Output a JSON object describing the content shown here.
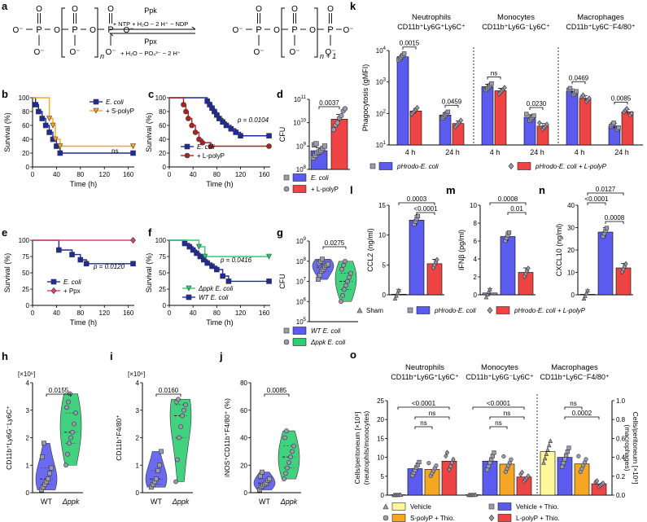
{
  "colors": {
    "blue": "#5b5bf0",
    "red": "#ef4444",
    "green": "#2ecc71",
    "orange": "#f5a623",
    "yellow": "#fff79a",
    "gray": "#8a8aa8",
    "navy": "#1f2a9c",
    "magenta": "#e0407a",
    "darkred": "#b22020",
    "ink": "#000000"
  },
  "panel_a": {
    "label": "a",
    "left_n": "n",
    "right_n": "n + 1",
    "top_enzyme": "Ppk",
    "top_reaction": "+ NTP + H₂O − 2 H⁺ − NDP",
    "bottom_enzyme": "Ppx",
    "bottom_reaction": "+ H₂O − PO₄³⁻ − 2 H⁺"
  },
  "chart_data": [
    {
      "id": "b",
      "type": "line",
      "title": "",
      "xlabel": "Time (h)",
      "ylabel": "Survival (%)",
      "xlim": [
        0,
        170
      ],
      "ylim": [
        0,
        100
      ],
      "xticks": [
        0,
        40,
        80,
        120,
        160
      ],
      "yticks": [
        0,
        20,
        40,
        60,
        80,
        100
      ],
      "series": [
        {
          "name": "E. coli",
          "color": "navy",
          "marker": "square",
          "x": [
            0,
            5,
            10,
            16,
            22,
            28,
            34,
            40,
            46,
            168
          ],
          "y": [
            100,
            90,
            80,
            70,
            60,
            50,
            40,
            30,
            20,
            20
          ]
        },
        {
          "name": "+ S-polyP",
          "color": "orange",
          "marker": "triangle",
          "x": [
            0,
            24,
            28,
            34,
            38,
            46,
            168
          ],
          "y": [
            100,
            100,
            70,
            60,
            40,
            30,
            30
          ]
        }
      ],
      "annotation": "ns",
      "legend": [
        "E. coli",
        "+ S-polyP"
      ]
    },
    {
      "id": "c",
      "type": "line",
      "xlabel": "Time (h)",
      "ylabel": "Survival (%)",
      "xlim": [
        0,
        170
      ],
      "ylim": [
        0,
        100
      ],
      "xticks": [
        0,
        40,
        80,
        120,
        160
      ],
      "yticks": [
        0,
        20,
        40,
        60,
        80,
        100
      ],
      "series": [
        {
          "name": "E. coli",
          "color": "navy",
          "marker": "square",
          "x": [
            0,
            60,
            64,
            68,
            72,
            76,
            80,
            84,
            90,
            96,
            104,
            112,
            120,
            168
          ],
          "y": [
            100,
            100,
            95,
            90,
            85,
            80,
            75,
            70,
            65,
            60,
            55,
            50,
            45,
            45
          ]
        },
        {
          "name": "+ L-polyP",
          "color": "darkred",
          "marker": "circle",
          "x": [
            0,
            24,
            28,
            32,
            38,
            44,
            50,
            56,
            70,
            168
          ],
          "y": [
            100,
            90,
            80,
            70,
            60,
            50,
            40,
            35,
            30,
            30
          ]
        }
      ],
      "annotation": "p = 0.0104",
      "legend": [
        "E. coli",
        "+ L-polyP"
      ]
    },
    {
      "id": "d",
      "type": "scatter",
      "ylabel": "CFU",
      "yscale": "log",
      "ylim": [
        8,
        11
      ],
      "yticks": [
        "10^8",
        "10^9",
        "10^10",
        "10^11"
      ],
      "groups": [
        {
          "name": "E. coli",
          "color": "blue",
          "marker": "square",
          "mean": 8.8,
          "sem": 0.12,
          "values": [
            8.5,
            8.6,
            8.7,
            8.75,
            8.8,
            8.9,
            9.0,
            9.05,
            9.1
          ]
        },
        {
          "name": "+ L-polyP",
          "color": "red",
          "marker": "circle",
          "mean": 10.15,
          "sem": 0.2,
          "values": [
            9.7,
            9.9,
            10.0,
            10.2,
            10.3,
            10.5,
            10.6
          ]
        }
      ],
      "comparisons": [
        {
          "text": "0.0037"
        }
      ],
      "legend": [
        "E. coli",
        "+ L-polyP"
      ]
    },
    {
      "id": "e",
      "type": "line",
      "xlabel": "Time (h)",
      "ylabel": "Survival (%)",
      "xlim": [
        0,
        170
      ],
      "ylim": [
        0,
        100
      ],
      "xticks": [
        0,
        40,
        80,
        120,
        160
      ],
      "yticks": [
        0,
        25,
        50,
        75,
        100
      ],
      "series": [
        {
          "name": "E. coli",
          "color": "navy",
          "marker": "square",
          "x": [
            0,
            40,
            44,
            60,
            66,
            74,
            80,
            90,
            168
          ],
          "y": [
            100,
            100,
            85,
            85,
            78,
            78,
            70,
            64,
            64
          ]
        },
        {
          "name": "+ Ppx",
          "color": "magenta",
          "marker": "diamond",
          "x": [
            0,
            168
          ],
          "y": [
            100,
            100
          ]
        }
      ],
      "annotation": "p = 0.0120",
      "legend": [
        "E. coli",
        "+ Ppx"
      ]
    },
    {
      "id": "f",
      "type": "line",
      "xlabel": "Time (h)",
      "ylabel": "Survival (%)",
      "xlim": [
        0,
        170
      ],
      "ylim": [
        0,
        100
      ],
      "xticks": [
        0,
        40,
        80,
        120,
        160
      ],
      "yticks": [
        0,
        25,
        50,
        75,
        100
      ],
      "series": [
        {
          "name": "WT E. coli",
          "color": "navy",
          "marker": "square",
          "x": [
            0,
            20,
            26,
            34,
            40,
            46,
            52,
            58,
            64,
            72,
            80,
            90,
            100,
            168
          ],
          "y": [
            100,
            100,
            95,
            90,
            85,
            80,
            75,
            70,
            65,
            60,
            55,
            45,
            37,
            37
          ]
        },
        {
          "name": "Δppk E. coli",
          "color": "green",
          "marker": "triangle",
          "x": [
            0,
            40,
            50,
            60,
            140,
            168
          ],
          "y": [
            100,
            100,
            90,
            75,
            75,
            75
          ]
        }
      ],
      "annotation": "p = 0.0416",
      "legend": [
        "Δppk E. coli",
        "WT E. coli"
      ]
    },
    {
      "id": "g",
      "type": "violin",
      "ylabel": "CFU",
      "yscale": "log",
      "ylim": [
        5,
        9
      ],
      "yticks": [
        "10^5",
        "10^6",
        "10^7",
        "10^8",
        "10^9"
      ],
      "groups": [
        {
          "name": "WT E. coli",
          "color": "blue",
          "marker": "square",
          "values": [
            7.1,
            7.3,
            7.5,
            7.6,
            7.7,
            7.8,
            7.85,
            7.9,
            8.0,
            8.1
          ]
        },
        {
          "name": "Δppk E. coli",
          "color": "green",
          "marker": "circle",
          "values": [
            6.0,
            6.3,
            6.6,
            6.8,
            7.0,
            7.2,
            7.4,
            7.6,
            7.8,
            8.0
          ]
        }
      ],
      "comparisons": [
        {
          "text": "0.0275"
        }
      ],
      "legend": [
        "WT E. coli",
        "Δppk E. coli"
      ]
    },
    {
      "id": "h",
      "type": "violin",
      "ylabel": "CD11b⁺Ly6G⁻Ly6C⁺",
      "multiplier": "[×10⁶]",
      "ylim": [
        0,
        4
      ],
      "yticks": [
        0,
        1,
        2,
        3,
        4
      ],
      "categories": [
        "WT",
        "Δppk"
      ],
      "groups": [
        {
          "name": "WT",
          "color": "blue",
          "marker": "square",
          "values": [
            0.1,
            0.2,
            0.3,
            0.4,
            0.5,
            0.7,
            0.9,
            1.3,
            1.8
          ]
        },
        {
          "name": "Δppk",
          "color": "green",
          "marker": "circle",
          "values": [
            1.0,
            1.4,
            1.8,
            2.0,
            2.2,
            2.5,
            2.9,
            3.1,
            3.3,
            3.6
          ]
        }
      ],
      "comparisons": [
        {
          "text": "0.0155"
        }
      ]
    },
    {
      "id": "i",
      "type": "violin",
      "ylabel": "CD11b⁺F4/80⁺",
      "multiplier": "[×10⁶]",
      "ylim": [
        0,
        4
      ],
      "yticks": [
        0,
        1,
        2,
        3,
        4
      ],
      "categories": [
        "WT",
        "Δppk"
      ],
      "groups": [
        {
          "name": "WT",
          "color": "blue",
          "marker": "square",
          "values": [
            0.2,
            0.3,
            0.4,
            0.5,
            0.8,
            1.0,
            1.5
          ]
        },
        {
          "name": "Δppk",
          "color": "green",
          "marker": "circle",
          "values": [
            0.4,
            1.2,
            2.0,
            2.4,
            2.8,
            3.0,
            3.2,
            3.3,
            3.4
          ]
        }
      ],
      "comparisons": [
        {
          "text": "0.0160"
        }
      ]
    },
    {
      "id": "j",
      "type": "violin",
      "ylabel": "iNOS⁺CD11b⁺F4/80⁺ (%)",
      "ylim": [
        0,
        80
      ],
      "yticks": [
        0,
        20,
        40,
        60,
        80
      ],
      "categories": [
        "WT",
        "Δppk"
      ],
      "groups": [
        {
          "name": "WT",
          "color": "blue",
          "marker": "square",
          "values": [
            2,
            4,
            5,
            6,
            7,
            9,
            10,
            12,
            15
          ]
        },
        {
          "name": "Δppk",
          "color": "green",
          "marker": "circle",
          "values": [
            10,
            14,
            18,
            22,
            26,
            30,
            34,
            40,
            45
          ]
        }
      ],
      "comparisons": [
        {
          "text": "0.0085"
        }
      ]
    },
    {
      "id": "k",
      "type": "bar",
      "ylabel": "Phagocytosis (gMFI)",
      "yscale": "log",
      "ylim": [
        1,
        4
      ],
      "yticks": [
        "10^1",
        "10^2",
        "10^3",
        "10^4"
      ],
      "sections": [
        "Neutrophils",
        "Monocytes",
        "Macrophages"
      ],
      "section_markers": [
        "CD11b⁺Ly6G⁺Ly6C⁺",
        "CD11b⁺Ly6G⁻Ly6C⁺",
        "CD11b⁺Ly6C⁻F4/80⁺"
      ],
      "categories": [
        "4 h",
        "24 h",
        "4 h",
        "24 h",
        "4 h",
        "24 h"
      ],
      "series": [
        {
          "name": "pHrodo-E. coli",
          "color": "blue",
          "marker": "square",
          "values": [
            3.8,
            1.95,
            2.85,
            1.88,
            2.7,
            1.6
          ]
        },
        {
          "name": "pHrodo-E. coli + L-polyP",
          "color": "red",
          "marker": "diamond",
          "values": [
            2.08,
            1.68,
            2.72,
            1.6,
            2.48,
            2.05
          ]
        }
      ],
      "comparisons": [
        "0.0015",
        "0.0459",
        "ns",
        "0.0230",
        "0.0469",
        "0.0085"
      ],
      "legend": [
        "pHrodo-E. coli",
        "pHrodo-E. coli + L-polyP"
      ]
    },
    {
      "id": "l",
      "type": "bar",
      "ylabel": "CCL2 (ng/ml)",
      "ylim": [
        0,
        15
      ],
      "yticks": [
        0,
        5,
        10,
        15
      ],
      "categories": [
        "Sham",
        "pHrodo-E. coli",
        "pHrodo-E. coli + L-polyP"
      ],
      "values": [
        0.1,
        12.5,
        5.2
      ],
      "colors": [
        "gray",
        "blue",
        "red"
      ],
      "comparisons": [
        "0.0003",
        "<0.0001"
      ]
    },
    {
      "id": "m",
      "type": "bar",
      "ylabel": "IFNβ (pg/ml)",
      "ylim": [
        0,
        10
      ],
      "yticks": [
        0,
        2,
        4,
        6,
        8,
        10
      ],
      "categories": [
        "Sham",
        "pHrodo-E. coli",
        "pHrodo-E. coli + L-polyP"
      ],
      "values": [
        0.2,
        6.5,
        2.5
      ],
      "colors": [
        "gray",
        "blue",
        "red"
      ],
      "comparisons": [
        "0.0008",
        "0.01"
      ]
    },
    {
      "id": "n",
      "type": "bar",
      "ylabel": "CXCL10 (ng/ml)",
      "ylim": [
        0,
        40
      ],
      "yticks": [
        0,
        10,
        20,
        30,
        40
      ],
      "categories": [
        "Sham",
        "pHrodo-E. coli",
        "pHrodo-E. coli + L-polyP"
      ],
      "values": [
        0.2,
        28,
        12
      ],
      "colors": [
        "gray",
        "blue",
        "red"
      ],
      "comparisons": [
        "<0.0001",
        "0.0127",
        "0.0008"
      ]
    },
    {
      "id": "o",
      "type": "bar",
      "ylabel": "Cells/peritoneum [×10⁶] (neutrophils/monocytes)",
      "y2label": "Cells/peritoneum [×10⁶] (macrophages)",
      "ylim": [
        0,
        25
      ],
      "yticks": [
        0,
        5,
        10,
        15,
        20,
        25
      ],
      "y2lim": [
        0,
        1.0
      ],
      "y2ticks": [
        0,
        0.2,
        0.4,
        0.6,
        0.8,
        1.0
      ],
      "sections": [
        "Neutrophils",
        "Monocytes",
        "Macrophages"
      ],
      "section_markers": [
        "CD11b⁺Ly6G⁺Ly6C⁺",
        "CD11b⁺Ly6G⁻Ly6C⁺",
        "CD11b⁺Ly6C⁻F4/80⁺"
      ],
      "series": [
        {
          "name": "Vehicle",
          "color": "yellow",
          "values": [
            0.1,
            0.1,
            0.46
          ]
        },
        {
          "name": "Vehicle + Thio.",
          "color": "blue",
          "values": [
            7.0,
            9.0,
            0.4
          ]
        },
        {
          "name": "S-polyP + Thio.",
          "color": "orange",
          "values": [
            6.8,
            8.2,
            0.33
          ]
        },
        {
          "name": "L-polyP + Thio.",
          "color": "red",
          "values": [
            9.0,
            4.8,
            0.12
          ]
        }
      ],
      "comparisons": [
        "<0.0001",
        "ns",
        "ns",
        "<0.0001",
        "ns",
        "ns",
        "ns",
        "0.0002"
      ],
      "legend": [
        "Vehicle",
        "Vehicle + Thio.",
        "S-polyP + Thio.",
        "L-polyP + Thio."
      ]
    }
  ]
}
